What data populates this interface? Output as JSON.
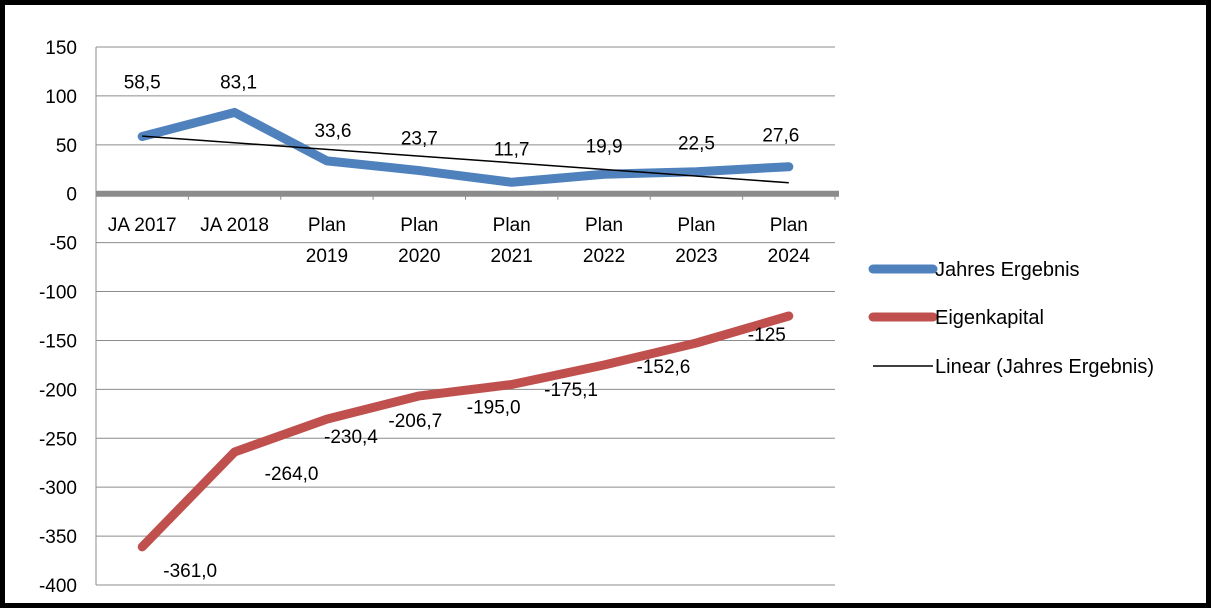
{
  "chart_data": {
    "type": "line",
    "categories": [
      [
        "JA 2017"
      ],
      [
        "JA 2018"
      ],
      [
        "Plan",
        "2019"
      ],
      [
        "Plan",
        "2020"
      ],
      [
        "Plan",
        "2021"
      ],
      [
        "Plan",
        "2022"
      ],
      [
        "Plan",
        "2023"
      ],
      [
        "Plan",
        "2024"
      ]
    ],
    "series": [
      {
        "name": "Jahres Ergebnis",
        "color": "#4F81BD",
        "values": [
          58.5,
          83.1,
          33.6,
          23.7,
          11.7,
          19.9,
          22.5,
          27.6
        ],
        "labels": [
          "58,5",
          "83,1",
          "33,6",
          "23,7",
          "11,7",
          "19,9",
          "22,5",
          "27,6"
        ]
      },
      {
        "name": "Eigenkapital",
        "color": "#C0504D",
        "values": [
          -361.0,
          -264.0,
          -230.4,
          -206.7,
          -195.0,
          -175.1,
          -152.6,
          -125
        ],
        "labels": [
          "-361,0",
          "-264,0",
          "-230,4",
          "-206,7",
          "-195,0",
          "-175,1",
          "-152,6",
          "-125"
        ]
      }
    ],
    "trendline": {
      "name": "Linear (Jahres Ergebnis)",
      "of_series": "Jahres Ergebnis",
      "color": "#000000"
    },
    "ylim": [
      -400,
      150
    ],
    "yticks": [
      150,
      100,
      50,
      0,
      -50,
      -100,
      -150,
      -200,
      -250,
      -300,
      -350,
      -400
    ],
    "grid": true,
    "legend_position": "right",
    "title": "",
    "xlabel": "",
    "ylabel": ""
  }
}
